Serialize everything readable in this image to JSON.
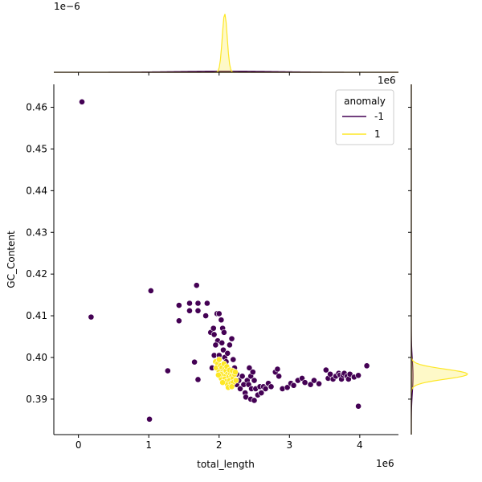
{
  "chart_data": {
    "type": "scatter",
    "subtype": "jointplot",
    "xlabel": "total_length",
    "ylabel": "GC_Content",
    "x_scale_label": "1e6",
    "y_scale_label": "",
    "top_marginal_scale_label": "1e−6",
    "right_marginal_scale_label": "1e6",
    "xlim": [
      -0.35,
      4.55
    ],
    "ylim": [
      0.3815,
      0.4655
    ],
    "x_ticks": [
      0,
      1,
      2,
      3,
      4
    ],
    "x_tick_labels": [
      "0",
      "1",
      "2",
      "3",
      "4"
    ],
    "y_ticks": [
      0.39,
      0.4,
      0.41,
      0.42,
      0.43,
      0.44,
      0.45,
      0.46
    ],
    "y_tick_labels": [
      "0.39",
      "0.40",
      "0.41",
      "0.42",
      "0.43",
      "0.44",
      "0.45",
      "0.46"
    ],
    "grid": false,
    "legend": {
      "title": "anomaly",
      "placement": "top-right",
      "entries": [
        {
          "label": "-1",
          "color": "#440154"
        },
        {
          "label": "1",
          "color": "#fde725"
        }
      ]
    },
    "series": [
      {
        "name": "-1",
        "color": "#440154",
        "points": [
          [
            0.05,
            0.4613
          ],
          [
            0.18,
            0.4097
          ],
          [
            1.03,
            0.416
          ],
          [
            1.01,
            0.3852
          ],
          [
            1.27,
            0.3968
          ],
          [
            1.43,
            0.4125
          ],
          [
            1.43,
            0.4088
          ],
          [
            1.58,
            0.413
          ],
          [
            1.58,
            0.4112
          ],
          [
            1.68,
            0.4173
          ],
          [
            1.7,
            0.413
          ],
          [
            1.7,
            0.4112
          ],
          [
            1.65,
            0.3989
          ],
          [
            1.7,
            0.3947
          ],
          [
            1.83,
            0.413
          ],
          [
            1.81,
            0.41
          ],
          [
            1.88,
            0.406
          ],
          [
            1.92,
            0.407
          ],
          [
            1.93,
            0.4055
          ],
          [
            1.97,
            0.4105
          ],
          [
            1.98,
            0.404
          ],
          [
            2.0,
            0.4105
          ],
          [
            2.03,
            0.409
          ],
          [
            2.05,
            0.407
          ],
          [
            2.07,
            0.406
          ],
          [
            1.95,
            0.403
          ],
          [
            1.93,
            0.4005
          ],
          [
            1.9,
            0.3975
          ],
          [
            2.0,
            0.4005
          ],
          [
            2.04,
            0.4035
          ],
          [
            2.06,
            0.4018
          ],
          [
            2.08,
            0.4
          ],
          [
            2.1,
            0.399
          ],
          [
            2.15,
            0.403
          ],
          [
            2.18,
            0.4045
          ],
          [
            2.12,
            0.401
          ],
          [
            2.2,
            0.3995
          ],
          [
            2.22,
            0.3975
          ],
          [
            2.25,
            0.396
          ],
          [
            2.25,
            0.3935
          ],
          [
            2.28,
            0.3945
          ],
          [
            2.3,
            0.3925
          ],
          [
            2.33,
            0.3955
          ],
          [
            2.35,
            0.3935
          ],
          [
            2.37,
            0.3915
          ],
          [
            2.4,
            0.3945
          ],
          [
            2.42,
            0.3935
          ],
          [
            2.43,
            0.3975
          ],
          [
            2.45,
            0.3955
          ],
          [
            2.46,
            0.3925
          ],
          [
            2.48,
            0.3965
          ],
          [
            2.5,
            0.3945
          ],
          [
            2.52,
            0.3925
          ],
          [
            2.38,
            0.3905
          ],
          [
            2.45,
            0.39
          ],
          [
            2.5,
            0.3897
          ],
          [
            2.55,
            0.391
          ],
          [
            2.58,
            0.393
          ],
          [
            2.6,
            0.3915
          ],
          [
            2.63,
            0.393
          ],
          [
            2.66,
            0.3925
          ],
          [
            2.7,
            0.3938
          ],
          [
            2.74,
            0.393
          ],
          [
            2.8,
            0.3965
          ],
          [
            2.83,
            0.3972
          ],
          [
            2.85,
            0.3955
          ],
          [
            2.9,
            0.3925
          ],
          [
            2.97,
            0.3928
          ],
          [
            3.02,
            0.3938
          ],
          [
            3.06,
            0.3933
          ],
          [
            3.12,
            0.3945
          ],
          [
            3.18,
            0.395
          ],
          [
            3.22,
            0.394
          ],
          [
            3.3,
            0.3935
          ],
          [
            3.35,
            0.3945
          ],
          [
            3.42,
            0.3937
          ],
          [
            3.52,
            0.397
          ],
          [
            3.55,
            0.395
          ],
          [
            3.58,
            0.396
          ],
          [
            3.62,
            0.3948
          ],
          [
            3.66,
            0.3955
          ],
          [
            3.7,
            0.3962
          ],
          [
            3.72,
            0.3958
          ],
          [
            3.74,
            0.3948
          ],
          [
            3.76,
            0.3958
          ],
          [
            3.78,
            0.3962
          ],
          [
            3.82,
            0.3955
          ],
          [
            3.84,
            0.3948
          ],
          [
            3.86,
            0.396
          ],
          [
            3.92,
            0.3953
          ],
          [
            3.98,
            0.3957
          ],
          [
            4.1,
            0.398
          ],
          [
            3.98,
            0.3883
          ]
        ]
      },
      {
        "name": "1",
        "color": "#fde725",
        "points": [
          [
            1.95,
            0.399
          ],
          [
            1.98,
            0.3985
          ],
          [
            2.0,
            0.3995
          ],
          [
            1.96,
            0.3975
          ],
          [
            2.02,
            0.398
          ],
          [
            2.04,
            0.3975
          ],
          [
            2.0,
            0.3965
          ],
          [
            2.05,
            0.3965
          ],
          [
            2.08,
            0.3972
          ],
          [
            2.1,
            0.3968
          ],
          [
            2.12,
            0.396
          ],
          [
            2.06,
            0.3955
          ],
          [
            2.03,
            0.395
          ],
          [
            2.08,
            0.3948
          ],
          [
            2.14,
            0.3955
          ],
          [
            2.16,
            0.3962
          ],
          [
            2.18,
            0.3955
          ],
          [
            2.1,
            0.3942
          ],
          [
            2.12,
            0.3935
          ],
          [
            2.15,
            0.3945
          ],
          [
            2.2,
            0.395
          ],
          [
            2.22,
            0.396
          ],
          [
            2.17,
            0.3938
          ],
          [
            2.2,
            0.394
          ],
          [
            2.24,
            0.3945
          ],
          [
            2.13,
            0.3928
          ],
          [
            2.18,
            0.393
          ],
          [
            2.02,
            0.396
          ],
          [
            1.99,
            0.3958
          ],
          [
            2.07,
            0.3985
          ],
          [
            2.11,
            0.3978
          ],
          [
            2.15,
            0.397
          ],
          [
            2.19,
            0.3968
          ],
          [
            2.23,
            0.3965
          ],
          [
            2.05,
            0.394
          ]
        ]
      }
    ],
    "marginal_top": {
      "description": "kde of total_length per class",
      "series": [
        {
          "name": "-1",
          "color": "#440154",
          "center": 2.1,
          "sigma": 0.7,
          "peak": 0.02
        },
        {
          "name": "1",
          "color": "#fde725",
          "center": 2.08,
          "sigma": 0.035,
          "peak": 1.0
        }
      ]
    },
    "marginal_right": {
      "description": "kde of GC_Content per class",
      "series": [
        {
          "name": "-1",
          "color": "#440154",
          "center": 0.3955,
          "sigma": 0.004,
          "peak": 0.03
        },
        {
          "name": "1",
          "color": "#fde725",
          "center": 0.396,
          "sigma": 0.0012,
          "peak": 1.0
        }
      ]
    }
  }
}
